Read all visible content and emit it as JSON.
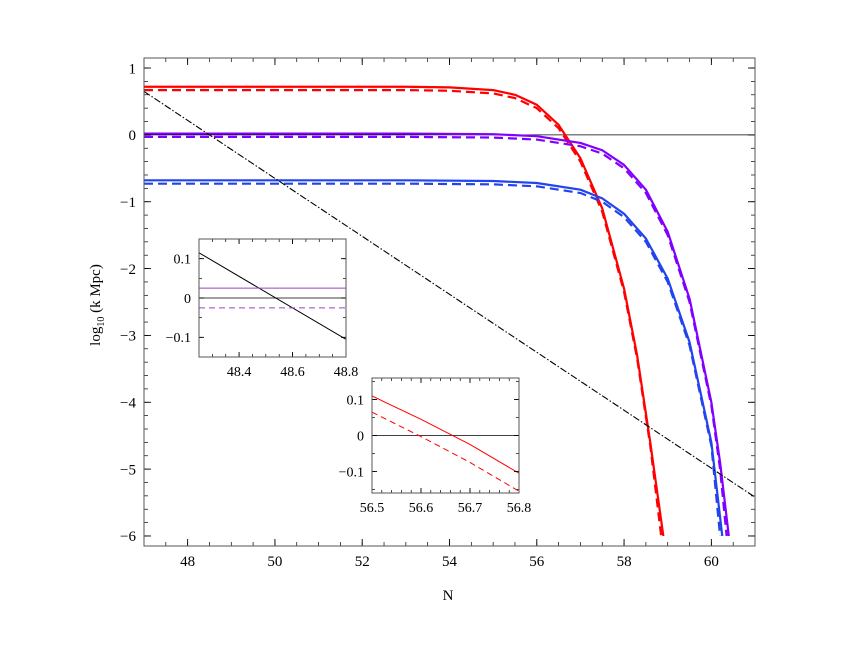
{
  "chart_data": [
    {
      "type": "line",
      "title": "",
      "xlabel": "N",
      "ylabel_main": "log",
      "ylabel_sub": "10",
      "ylabel_rest": " (k Mpc)",
      "xlim": [
        47,
        61
      ],
      "ylim": [
        -6.15,
        1.15
      ],
      "xticks": [
        48,
        50,
        52,
        54,
        56,
        58,
        60
      ],
      "xtick_labels": [
        "48",
        "50",
        "52",
        "54",
        "56",
        "58",
        "60"
      ],
      "yticks": [
        1,
        0,
        -1,
        -2,
        -3,
        -4,
        -5,
        -6
      ],
      "ytick_labels": [
        "1",
        "0",
        "−1",
        "−2",
        "−3",
        "−4",
        "−5",
        "−6"
      ],
      "grid": false,
      "reference_line": {
        "y": 0,
        "color": "#000000"
      },
      "series": [
        {
          "style": "solid",
          "color": "#ff0000",
          "x": [
            47,
            49,
            51,
            53,
            54,
            55,
            55.5,
            56,
            56.5,
            57,
            57.5,
            58,
            58.3,
            58.6,
            58.9
          ],
          "y": [
            0.72,
            0.72,
            0.72,
            0.72,
            0.71,
            0.67,
            0.6,
            0.45,
            0.15,
            -0.35,
            -1.1,
            -2.3,
            -3.3,
            -4.6,
            -6.0
          ]
        },
        {
          "style": "dashed",
          "color": "#ff0000",
          "x": [
            47,
            49,
            51,
            53,
            54,
            55,
            55.5,
            56,
            56.5,
            57,
            57.5,
            58,
            58.3,
            58.6,
            58.85
          ],
          "y": [
            0.67,
            0.67,
            0.67,
            0.67,
            0.66,
            0.62,
            0.55,
            0.4,
            0.1,
            -0.4,
            -1.15,
            -2.35,
            -3.35,
            -4.65,
            -6.0
          ]
        },
        {
          "style": "solid",
          "color": "#8000ff",
          "x": [
            47,
            50,
            53,
            55,
            56,
            57,
            57.5,
            58,
            58.5,
            59,
            59.5,
            60,
            60.2,
            60.4
          ],
          "y": [
            0.02,
            0.02,
            0.02,
            0.01,
            -0.02,
            -0.12,
            -0.23,
            -0.45,
            -0.82,
            -1.45,
            -2.45,
            -4.0,
            -4.9,
            -6.0
          ]
        },
        {
          "style": "dashed",
          "color": "#8000ff",
          "x": [
            47,
            50,
            53,
            55,
            56,
            57,
            57.5,
            58,
            58.5,
            59,
            59.5,
            60,
            60.2,
            60.35
          ],
          "y": [
            -0.03,
            -0.03,
            -0.03,
            -0.04,
            -0.07,
            -0.17,
            -0.28,
            -0.5,
            -0.87,
            -1.5,
            -2.5,
            -4.05,
            -5.0,
            -6.0
          ]
        },
        {
          "style": "solid",
          "color": "#2244ee",
          "x": [
            47,
            50,
            53,
            55,
            56,
            57,
            57.5,
            58,
            58.5,
            59,
            59.5,
            60,
            60.25
          ],
          "y": [
            -0.68,
            -0.68,
            -0.68,
            -0.69,
            -0.72,
            -0.82,
            -0.95,
            -1.18,
            -1.55,
            -2.15,
            -3.1,
            -4.6,
            -6.0
          ]
        },
        {
          "style": "dashed",
          "color": "#2244ee",
          "x": [
            47,
            50,
            53,
            55,
            56,
            57,
            57.5,
            58,
            58.5,
            59,
            59.5,
            60,
            60.2
          ],
          "y": [
            -0.73,
            -0.73,
            -0.73,
            -0.74,
            -0.77,
            -0.87,
            -1.0,
            -1.23,
            -1.6,
            -2.2,
            -3.15,
            -4.65,
            -6.0
          ]
        },
        {
          "style": "dashdot",
          "color": "#000000",
          "x": [
            47,
            61
          ],
          "y": [
            0.65,
            -5.42
          ]
        }
      ]
    },
    {
      "type": "line",
      "xlabel": "",
      "ylabel": "",
      "xlim": [
        48.25,
        48.8
      ],
      "ylim": [
        -0.15,
        0.15
      ],
      "xticks": [
        48.4,
        48.6,
        48.8
      ],
      "xtick_labels": [
        "48.4",
        "48.6",
        "48.8"
      ],
      "yticks": [
        0.1,
        0,
        -0.1
      ],
      "ytick_labels": [
        "0.1",
        "0",
        "−0.1"
      ],
      "reference_line": {
        "y": 0,
        "color": "#000000"
      },
      "series": [
        {
          "style": "solid",
          "color": "#000000",
          "x": [
            48.25,
            48.8
          ],
          "y": [
            0.115,
            -0.105
          ]
        },
        {
          "style": "solid",
          "color": "#a040c0",
          "x": [
            48.25,
            48.8
          ],
          "y": [
            0.025,
            0.025
          ]
        },
        {
          "style": "dashed",
          "color": "#a040c0",
          "x": [
            48.25,
            48.8
          ],
          "y": [
            -0.025,
            -0.025
          ]
        }
      ]
    },
    {
      "type": "line",
      "xlabel": "",
      "ylabel": "",
      "xlim": [
        56.5,
        56.8
      ],
      "ylim": [
        -0.16,
        0.16
      ],
      "xticks": [
        56.5,
        56.6,
        56.7,
        56.8
      ],
      "xtick_labels": [
        "56.5",
        "56.6",
        "56.7",
        "56.8"
      ],
      "yticks": [
        0.1,
        0,
        -0.1
      ],
      "ytick_labels": [
        "0.1",
        "0",
        "−0.1"
      ],
      "reference_line": {
        "y": 0,
        "color": "#000000"
      },
      "series": [
        {
          "style": "solid",
          "color": "#ff0000",
          "x": [
            56.5,
            56.6,
            56.7,
            56.8
          ],
          "y": [
            0.11,
            0.045,
            -0.025,
            -0.105
          ]
        },
        {
          "style": "dashed",
          "color": "#ff0000",
          "x": [
            56.5,
            56.6,
            56.7,
            56.8
          ],
          "y": [
            0.065,
            -0.003,
            -0.075,
            -0.155
          ]
        }
      ]
    }
  ]
}
